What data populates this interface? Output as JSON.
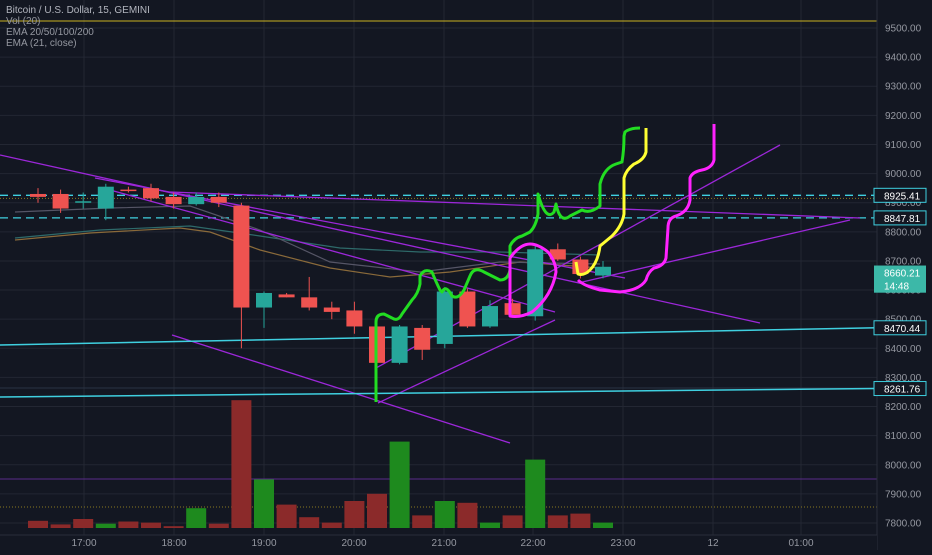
{
  "legend": {
    "title": "Bitcoin / U.S. Dollar, 15, GEMINI",
    "vol": "Vol (20)",
    "ema": "EMA 20/50/100/200",
    "ema2": "EMA (21, close)"
  },
  "colors": {
    "background": "#131722",
    "up": "#26a69a",
    "down": "#ef5350",
    "vol_up": "#1e8a1e",
    "vol_down": "#8b2a2a",
    "trend_purple": "#9c27d9",
    "horizontal_cyan": "#3fd0e0",
    "price_tag_bg": "#3cb8a8",
    "yellow_line": "#c8b020",
    "green_path": "#22dd22",
    "yellow_path": "#ffff33",
    "magenta_path": "#ff22ff"
  },
  "chart_data": {
    "type": "candlestick",
    "title": "Bitcoin / U.S. Dollar, 15, GEMINI",
    "ylim": [
      7750,
      9650
    ],
    "y_ticks": [
      "9500.00",
      "9400.00",
      "9300.00",
      "9200.00",
      "9100.00",
      "9000.00",
      "8900.00",
      "8800.00",
      "8700.00",
      "8600.00",
      "8500.00",
      "8400.00",
      "8300.00",
      "8200.00",
      "8100.00",
      "8000.00",
      "7900.00",
      "7800.00"
    ],
    "x_ticks": [
      "17:00",
      "18:00",
      "19:00",
      "20:00",
      "21:00",
      "22:00",
      "23:00",
      "12",
      "01:00"
    ],
    "candles": [
      {
        "i": 0,
        "o": 8930,
        "h": 8950,
        "l": 8900,
        "c": 8920
      },
      {
        "i": 1,
        "o": 8930,
        "h": 8945,
        "l": 8865,
        "c": 8880
      },
      {
        "i": 2,
        "o": 8905,
        "h": 8935,
        "l": 8880,
        "c": 8905
      },
      {
        "i": 3,
        "o": 8880,
        "h": 8965,
        "l": 8840,
        "c": 8955
      },
      {
        "i": 4,
        "o": 8945,
        "h": 8955,
        "l": 8935,
        "c": 8940
      },
      {
        "i": 5,
        "o": 8950,
        "h": 8965,
        "l": 8905,
        "c": 8915
      },
      {
        "i": 6,
        "o": 8920,
        "h": 8935,
        "l": 8880,
        "c": 8895
      },
      {
        "i": 7,
        "o": 8895,
        "h": 8935,
        "l": 8890,
        "c": 8920
      },
      {
        "i": 8,
        "o": 8920,
        "h": 8935,
        "l": 8885,
        "c": 8900
      },
      {
        "i": 9,
        "o": 8890,
        "h": 8900,
        "l": 8400,
        "c": 8540
      },
      {
        "i": 10,
        "o": 8540,
        "h": 8595,
        "l": 8470,
        "c": 8590
      },
      {
        "i": 11,
        "o": 8585,
        "h": 8590,
        "l": 8575,
        "c": 8575
      },
      {
        "i": 12,
        "o": 8575,
        "h": 8645,
        "l": 8530,
        "c": 8540
      },
      {
        "i": 13,
        "o": 8540,
        "h": 8560,
        "l": 8500,
        "c": 8525
      },
      {
        "i": 14,
        "o": 8530,
        "h": 8560,
        "l": 8450,
        "c": 8475
      },
      {
        "i": 15,
        "o": 8475,
        "h": 8490,
        "l": 8320,
        "c": 8350
      },
      {
        "i": 16,
        "o": 8350,
        "h": 8480,
        "l": 8345,
        "c": 8475
      },
      {
        "i": 17,
        "o": 8470,
        "h": 8480,
        "l": 8360,
        "c": 8395
      },
      {
        "i": 18,
        "o": 8415,
        "h": 8610,
        "l": 8400,
        "c": 8595
      },
      {
        "i": 19,
        "o": 8595,
        "h": 8605,
        "l": 8470,
        "c": 8475
      },
      {
        "i": 20,
        "o": 8475,
        "h": 8565,
        "l": 8470,
        "c": 8545
      },
      {
        "i": 21,
        "o": 8555,
        "h": 8570,
        "l": 8510,
        "c": 8515
      },
      {
        "i": 22,
        "o": 8510,
        "h": 8750,
        "l": 8495,
        "c": 8740
      },
      {
        "i": 23,
        "o": 8740,
        "h": 8760,
        "l": 8700,
        "c": 8705
      },
      {
        "i": 24,
        "o": 8705,
        "h": 8715,
        "l": 8640,
        "c": 8655
      },
      {
        "i": 25,
        "o": 8650,
        "h": 8700,
        "l": 8640,
        "c": 8680
      }
    ],
    "volume": [
      {
        "i": 0,
        "v": 0.2,
        "up": false
      },
      {
        "i": 1,
        "v": 0.1,
        "up": false
      },
      {
        "i": 2,
        "v": 0.25,
        "up": false
      },
      {
        "i": 3,
        "v": 0.12,
        "up": true
      },
      {
        "i": 4,
        "v": 0.18,
        "up": false
      },
      {
        "i": 5,
        "v": 0.15,
        "up": false
      },
      {
        "i": 6,
        "v": 0.05,
        "up": false
      },
      {
        "i": 7,
        "v": 0.55,
        "up": true
      },
      {
        "i": 8,
        "v": 0.12,
        "up": false
      },
      {
        "i": 9,
        "v": 3.55,
        "up": false
      },
      {
        "i": 10,
        "v": 1.35,
        "up": true
      },
      {
        "i": 11,
        "v": 0.65,
        "up": false
      },
      {
        "i": 12,
        "v": 0.3,
        "up": false
      },
      {
        "i": 13,
        "v": 0.15,
        "up": false
      },
      {
        "i": 14,
        "v": 0.75,
        "up": false
      },
      {
        "i": 15,
        "v": 0.95,
        "up": false
      },
      {
        "i": 16,
        "v": 2.4,
        "up": true
      },
      {
        "i": 17,
        "v": 0.35,
        "up": false
      },
      {
        "i": 18,
        "v": 0.75,
        "up": true
      },
      {
        "i": 19,
        "v": 0.7,
        "up": false
      },
      {
        "i": 20,
        "v": 0.15,
        "up": true
      },
      {
        "i": 21,
        "v": 0.35,
        "up": false
      },
      {
        "i": 22,
        "v": 1.9,
        "up": true
      },
      {
        "i": 23,
        "v": 0.35,
        "up": false
      },
      {
        "i": 24,
        "v": 0.4,
        "up": false
      },
      {
        "i": 25,
        "v": 0.15,
        "up": true
      }
    ],
    "price_tags": [
      {
        "label": "8925.41",
        "price": 8925.41,
        "style": "dashed"
      },
      {
        "label": "8847.81",
        "price": 8847.81,
        "style": "dashed"
      },
      {
        "label": "8660.21",
        "price": 8660.21,
        "style": "current"
      },
      {
        "label": "14:48",
        "price": 8615,
        "style": "countdown"
      },
      {
        "label": "8470.44",
        "price": 8470.44,
        "style": "cyan"
      },
      {
        "label": "8261.76",
        "price": 8261.76,
        "style": "cyan"
      }
    ]
  }
}
